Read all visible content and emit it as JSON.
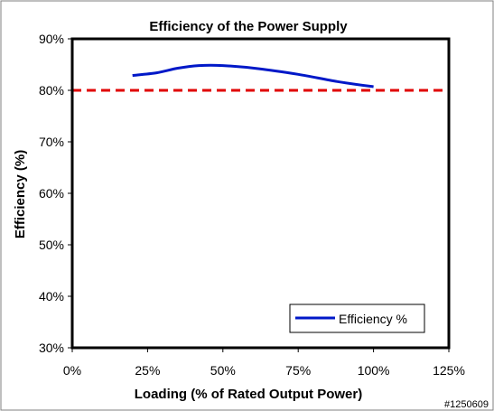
{
  "chart_data": {
    "type": "line",
    "title": "Efficiency of the Power Supply",
    "xlabel": "Loading (% of Rated Output Power)",
    "ylabel": "Efficiency (%)",
    "xlim": [
      0,
      125
    ],
    "ylim": [
      30,
      90
    ],
    "x_ticks": [
      0,
      25,
      50,
      75,
      100,
      125
    ],
    "x_tick_labels": [
      "0%",
      "25%",
      "50%",
      "75%",
      "100%",
      "125%"
    ],
    "y_ticks": [
      30,
      40,
      50,
      60,
      70,
      80,
      90
    ],
    "y_tick_labels": [
      "30%",
      "40%",
      "50%",
      "60%",
      "70%",
      "80%",
      "90%"
    ],
    "grid": false,
    "legend_position": "bottom-right",
    "series": [
      {
        "name": "Efficiency %",
        "color": "#0018c8",
        "x": [
          20,
          28,
          35,
          42,
          50,
          62,
          75,
          88,
          100
        ],
        "y": [
          82.9,
          83.4,
          84.3,
          84.8,
          84.8,
          84.2,
          83.1,
          81.7,
          80.7
        ]
      }
    ],
    "reference_lines": [
      {
        "y": 80,
        "color": "#e00000",
        "style": "dashed"
      }
    ]
  },
  "footer": {
    "image_id": "#1250609"
  }
}
